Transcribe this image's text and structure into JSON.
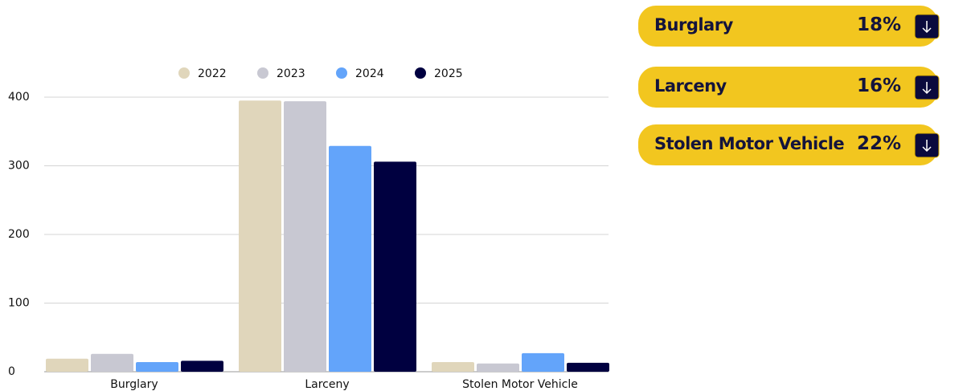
{
  "chart_data": {
    "type": "bar",
    "categories": [
      "Burglary",
      "Larceny",
      "Stolen Motor Vehicle"
    ],
    "series": [
      {
        "name": "2022",
        "color": "#e0d6bb",
        "values": [
          19,
          395,
          14
        ]
      },
      {
        "name": "2023",
        "color": "#c8c8d2",
        "values": [
          26,
          394,
          12
        ]
      },
      {
        "name": "2024",
        "color": "#63a4fa",
        "values": [
          14,
          329,
          27
        ]
      },
      {
        "name": "2025",
        "color": "#000040",
        "values": [
          16,
          306,
          13
        ]
      }
    ],
    "ylim": [
      0,
      400
    ],
    "yticks": [
      0,
      100,
      200,
      300,
      400
    ],
    "grid": true,
    "legend": "top"
  },
  "cards": [
    {
      "label": "Burglary",
      "value": "18%"
    },
    {
      "label": "Larceny",
      "value": "16%"
    },
    {
      "label": "Stolen Motor Vehicle",
      "value": "22%"
    }
  ]
}
